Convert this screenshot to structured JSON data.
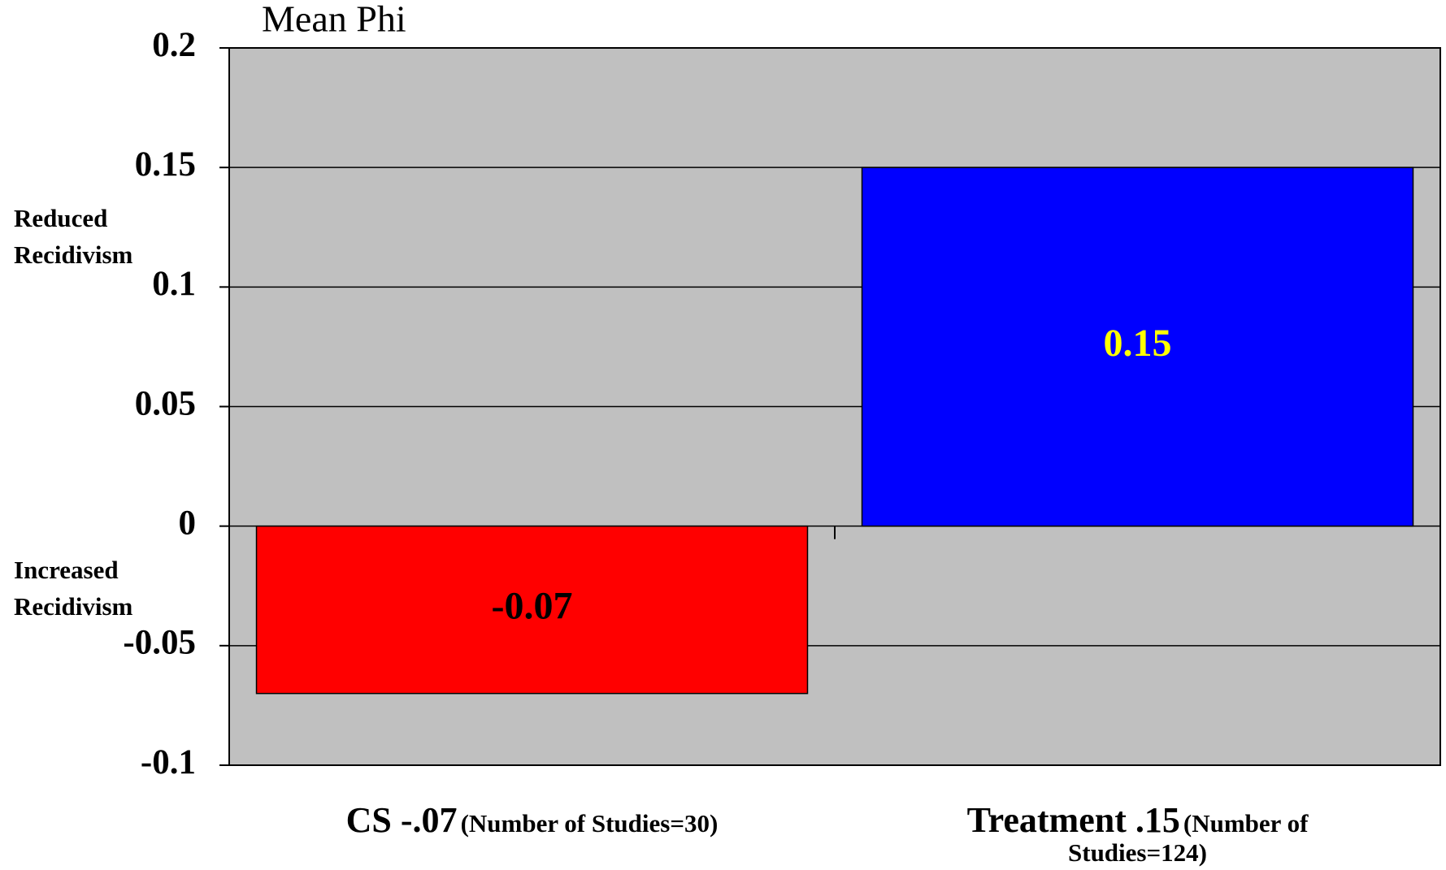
{
  "chart_data": {
    "type": "bar",
    "title": "Mean Phi",
    "categories": [
      "CS -.07",
      "Treatment .15"
    ],
    "category_notes": [
      "(Number of Studies=30)",
      "(Number of Studies=124)"
    ],
    "values": [
      -0.07,
      0.15
    ],
    "colors": [
      "#ff0000",
      "#0000ff"
    ],
    "label_colors": [
      "#000000",
      "#ffff00"
    ],
    "annotations": [
      "Reduced Recidivism",
      "Increased Recidivism"
    ],
    "ylim": [
      -0.1,
      0.2
    ],
    "yticks": [
      -0.1,
      -0.05,
      0,
      0.05,
      0.1,
      0.15,
      0.2
    ],
    "grid": true
  }
}
